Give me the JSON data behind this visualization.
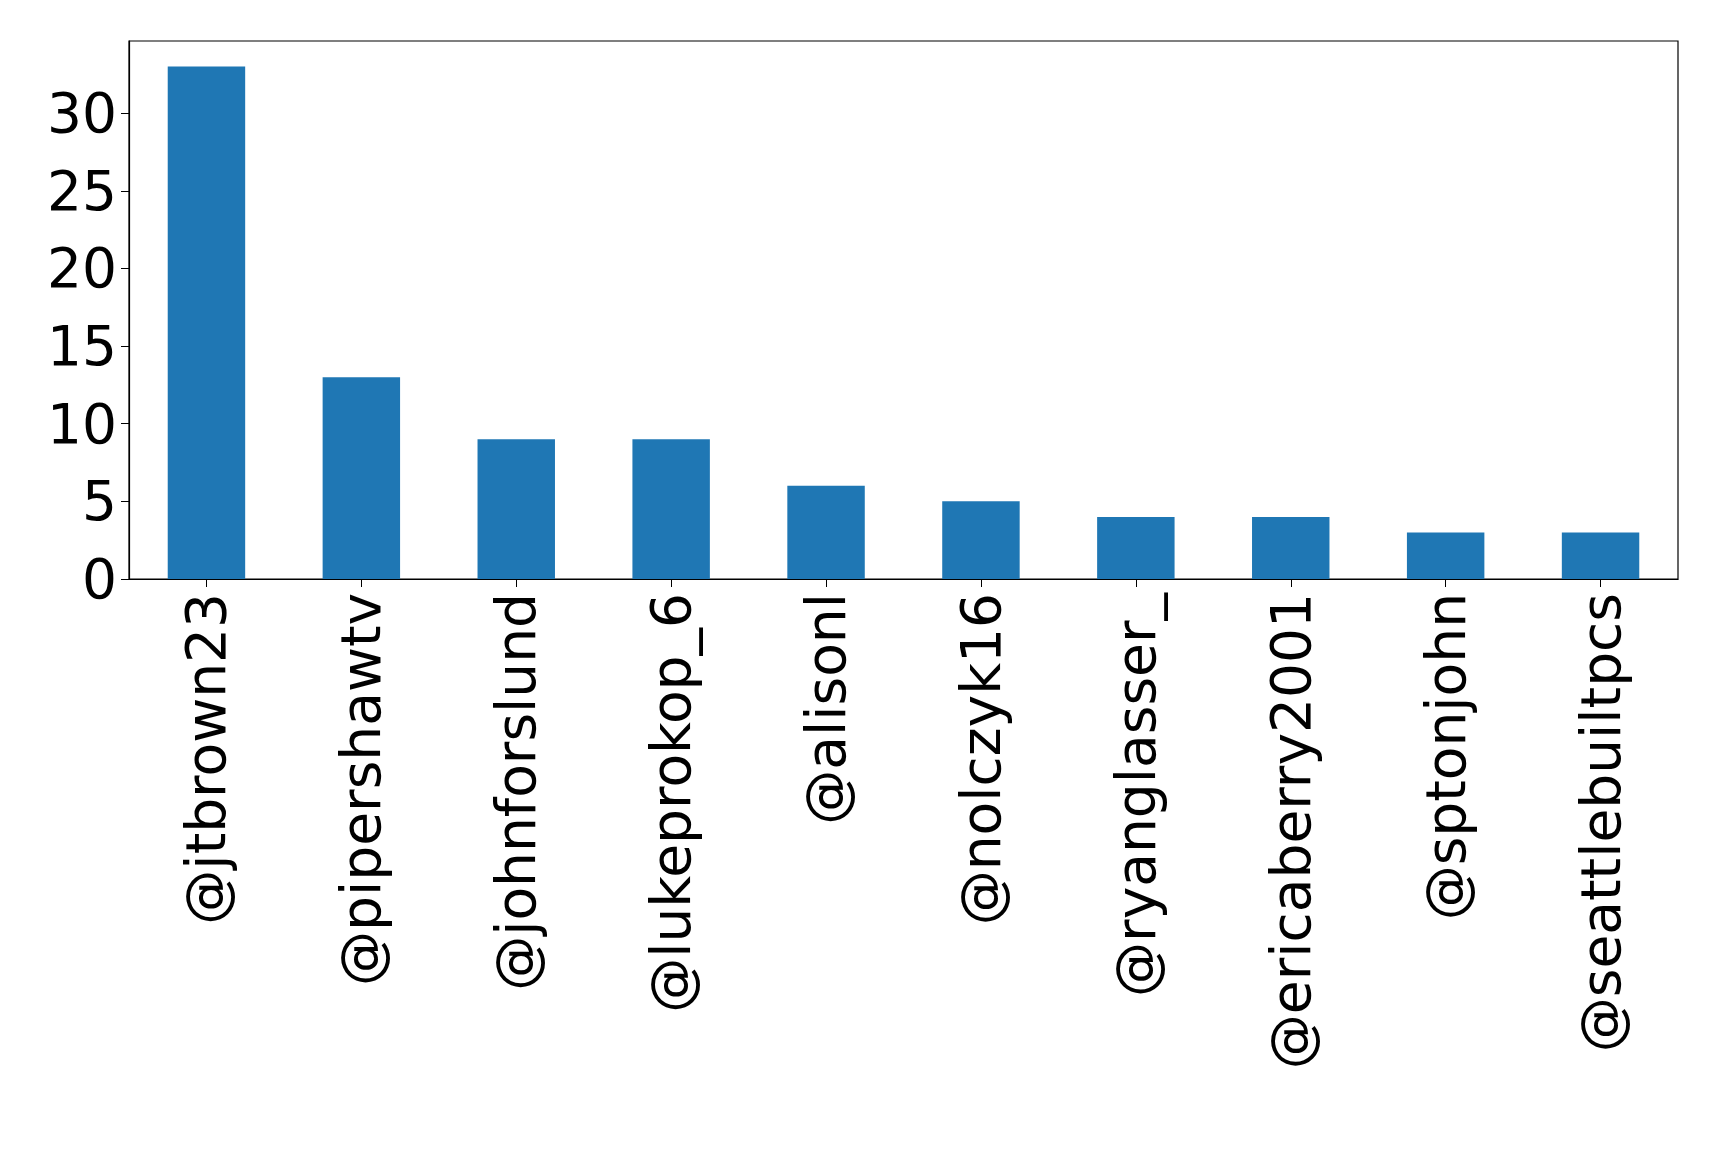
{
  "chart_data": {
    "type": "bar",
    "categories": [
      "@jtbrown23",
      "@pipershawtv",
      "@johnforslund",
      "@lukeprokop_6",
      "@alisonl",
      "@nolczyk16",
      "@ryanglasser_",
      "@ericaberry2001",
      "@sptonjohn",
      "@seattlebuiltpcs"
    ],
    "values": [
      33,
      13,
      9,
      9,
      6,
      5,
      4,
      4,
      3,
      3
    ],
    "color": "#1f77b4",
    "ylim": [
      0,
      34.65
    ],
    "yticks": [
      0,
      5,
      10,
      15,
      20,
      25,
      30
    ],
    "grid": false
  }
}
